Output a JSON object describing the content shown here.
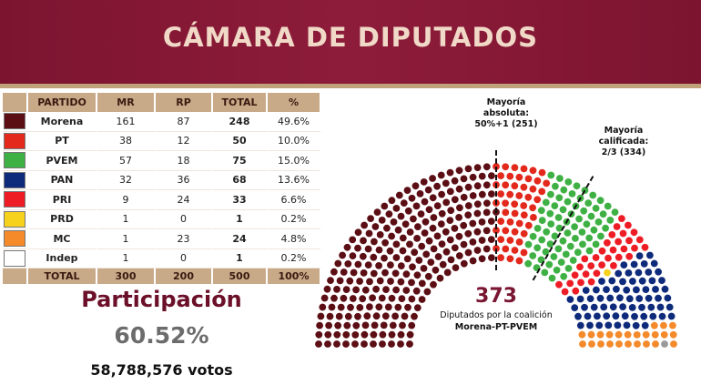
{
  "header": {
    "title": "CÁMARA DE DIPUTADOS"
  },
  "table": {
    "headers": {
      "party": "PARTIDO",
      "mr": "MR",
      "rp": "RP",
      "total": "TOTAL",
      "pct": "%"
    },
    "rows": [
      {
        "party": "Morena",
        "mr": "161",
        "rp": "87",
        "total": "248",
        "pct": "49.6%",
        "color": "#5b0e14"
      },
      {
        "party": "PT",
        "mr": "38",
        "rp": "12",
        "total": "50",
        "pct": "10.0%",
        "color": "#e3281c"
      },
      {
        "party": "PVEM",
        "mr": "57",
        "rp": "18",
        "total": "75",
        "pct": "15.0%",
        "color": "#3fb144"
      },
      {
        "party": "PAN",
        "mr": "32",
        "rp": "36",
        "total": "68",
        "pct": "13.6%",
        "color": "#0e2a7a"
      },
      {
        "party": "PRI",
        "mr": "9",
        "rp": "24",
        "total": "33",
        "pct": "6.6%",
        "color": "#ee1d25"
      },
      {
        "party": "PRD",
        "mr": "1",
        "rp": "0",
        "total": "1",
        "pct": "0.2%",
        "color": "#f6d21c"
      },
      {
        "party": "MC",
        "mr": "1",
        "rp": "23",
        "total": "24",
        "pct": "4.8%",
        "color": "#f48a2a"
      },
      {
        "party": "Indep",
        "mr": "1",
        "rp": "0",
        "total": "1",
        "pct": "0.2%",
        "color": "#ffffff"
      }
    ],
    "total_row": {
      "party": "TOTAL",
      "mr": "300",
      "rp": "200",
      "total": "500",
      "pct": "100%"
    }
  },
  "participation": {
    "label": "Participación",
    "percent": "60.52%",
    "votes": "58,788,576 votos"
  },
  "chart_data": {
    "type": "hemicycle",
    "total_seats": 500,
    "series": [
      {
        "name": "Morena",
        "values": [
          248
        ],
        "color": "#5b0e14"
      },
      {
        "name": "PT",
        "values": [
          50
        ],
        "color": "#e3281c"
      },
      {
        "name": "PVEM",
        "values": [
          75
        ],
        "color": "#3fb144"
      },
      {
        "name": "PRI",
        "values": [
          33
        ],
        "color": "#ee1d25"
      },
      {
        "name": "PRD",
        "values": [
          1
        ],
        "color": "#f6d21c"
      },
      {
        "name": "PAN",
        "values": [
          68
        ],
        "color": "#0e2a7a"
      },
      {
        "name": "MC",
        "values": [
          24
        ],
        "color": "#f48a2a"
      },
      {
        "name": "Indep",
        "values": [
          1
        ],
        "color": "#9a9a9a"
      }
    ],
    "annotations": {
      "absolute_majority": {
        "lines": [
          "Mayoría",
          "absoluta:",
          "50%+1 (251)"
        ],
        "value": 251
      },
      "qualified_majority": {
        "lines": [
          "Mayoría",
          "calificada:",
          "2/3 (334)"
        ],
        "value": 334
      }
    },
    "coalition": {
      "number": "373",
      "caption": "Diputados por la coalición",
      "parties": "Morena-PT-PVEM"
    }
  }
}
